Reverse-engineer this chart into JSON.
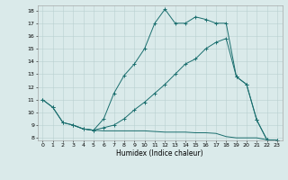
{
  "xlabel": "Humidex (Indice chaleur)",
  "bg_color": "#daeaea",
  "grid_color": "#b8d0d0",
  "line_color": "#1a6e6e",
  "xlim": [
    -0.5,
    23.5
  ],
  "ylim": [
    7.8,
    18.4
  ],
  "xticks": [
    0,
    1,
    2,
    3,
    4,
    5,
    6,
    7,
    8,
    9,
    10,
    11,
    12,
    13,
    14,
    15,
    16,
    17,
    18,
    19,
    20,
    21,
    22,
    23
  ],
  "yticks": [
    8,
    9,
    10,
    11,
    12,
    13,
    14,
    15,
    16,
    17,
    18
  ],
  "line1_x": [
    0,
    1,
    2,
    3,
    4,
    5,
    6,
    7,
    8,
    9,
    10,
    11,
    12,
    13,
    14,
    15,
    16,
    17,
    18,
    19,
    20,
    21,
    22,
    23
  ],
  "line1_y": [
    11,
    10.4,
    9.2,
    9.0,
    8.7,
    8.6,
    9.5,
    11.5,
    12.9,
    13.8,
    15.0,
    17.0,
    18.1,
    17.0,
    17.0,
    17.5,
    17.3,
    17.0,
    17.0,
    12.8,
    12.2,
    9.4,
    7.85,
    7.8
  ],
  "line2_x": [
    0,
    1,
    2,
    3,
    4,
    5,
    6,
    7,
    8,
    9,
    10,
    11,
    12,
    13,
    14,
    15,
    16,
    17,
    18,
    19,
    20,
    21,
    22,
    23
  ],
  "line2_y": [
    11,
    10.4,
    9.2,
    9.0,
    8.7,
    8.6,
    8.8,
    9.0,
    9.5,
    10.2,
    10.8,
    11.5,
    12.2,
    13.0,
    13.8,
    14.2,
    15.0,
    15.5,
    15.8,
    12.8,
    12.2,
    9.4,
    7.85,
    7.8
  ],
  "line3_x": [
    3,
    4,
    5,
    6,
    7,
    8,
    9,
    10,
    11,
    12,
    13,
    14,
    15,
    16,
    17,
    18,
    19,
    20,
    21,
    22,
    23
  ],
  "line3_y": [
    9.0,
    8.7,
    8.6,
    8.55,
    8.55,
    8.55,
    8.55,
    8.55,
    8.5,
    8.45,
    8.45,
    8.45,
    8.4,
    8.4,
    8.35,
    8.1,
    8.0,
    8.0,
    8.0,
    7.85,
    7.8
  ]
}
